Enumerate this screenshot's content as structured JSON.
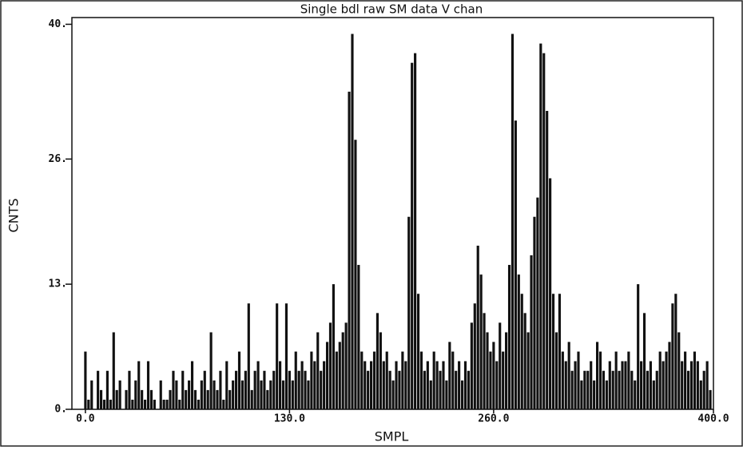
{
  "chart_data": {
    "type": "bar",
    "title": "Single bdl raw SM data V chan",
    "x_label": "SMPL",
    "y_label": "CNTS",
    "color": "#111111",
    "xlim": [
      -8.6,
      400
    ],
    "ylim": [
      0,
      40.7
    ],
    "xticks": [
      {
        "value": 0,
        "label": "0.0"
      },
      {
        "value": 130,
        "label": "130.0"
      },
      {
        "value": 260,
        "label": "260.0"
      },
      {
        "value": 400,
        "label": "400.0"
      }
    ],
    "yticks": [
      {
        "value": 0,
        "label": "0."
      },
      {
        "value": 13,
        "label": "13."
      },
      {
        "value": 26,
        "label": "26."
      },
      {
        "value": 40,
        "label": "40."
      }
    ],
    "grid": false,
    "x": [
      0,
      2,
      4,
      6,
      8,
      10,
      12,
      14,
      16,
      18,
      20,
      22,
      24,
      26,
      28,
      30,
      32,
      34,
      36,
      38,
      40,
      42,
      44,
      46,
      48,
      50,
      52,
      54,
      56,
      58,
      60,
      62,
      64,
      66,
      68,
      70,
      72,
      74,
      76,
      78,
      80,
      82,
      84,
      86,
      88,
      90,
      92,
      94,
      96,
      98,
      100,
      102,
      104,
      106,
      108,
      110,
      112,
      114,
      116,
      118,
      120,
      122,
      124,
      126,
      128,
      130,
      132,
      134,
      136,
      138,
      140,
      142,
      144,
      146,
      148,
      150,
      152,
      154,
      156,
      158,
      160,
      162,
      164,
      166,
      168,
      170,
      172,
      174,
      176,
      178,
      180,
      182,
      184,
      186,
      188,
      190,
      192,
      194,
      196,
      198,
      200,
      202,
      204,
      206,
      208,
      210,
      212,
      214,
      216,
      218,
      220,
      222,
      224,
      226,
      228,
      230,
      232,
      234,
      236,
      238,
      240,
      242,
      244,
      246,
      248,
      250,
      252,
      254,
      256,
      258,
      260,
      262,
      264,
      266,
      268,
      270,
      272,
      274,
      276,
      278,
      280,
      282,
      284,
      286,
      288,
      290,
      292,
      294,
      296,
      298,
      300,
      302,
      304,
      306,
      308,
      310,
      312,
      314,
      316,
      318,
      320,
      322,
      324,
      326,
      328,
      330,
      332,
      334,
      336,
      338,
      340,
      342,
      344,
      346,
      348,
      350,
      352,
      354,
      356,
      358,
      360,
      362,
      364,
      366,
      368,
      370,
      372,
      374,
      376,
      378,
      380,
      382,
      384,
      386,
      388,
      390,
      392,
      394,
      396,
      398
    ],
    "values": [
      6,
      1,
      3,
      0,
      4,
      2,
      1,
      4,
      1,
      8,
      2,
      3,
      0,
      2,
      4,
      1,
      3,
      5,
      2,
      1,
      5,
      2,
      1,
      0,
      3,
      1,
      1,
      2,
      4,
      3,
      1,
      4,
      2,
      3,
      5,
      2,
      1,
      3,
      4,
      2,
      8,
      3,
      2,
      4,
      1,
      5,
      2,
      3,
      4,
      6,
      3,
      4,
      11,
      2,
      4,
      5,
      3,
      4,
      2,
      3,
      4,
      11,
      5,
      3,
      11,
      4,
      3,
      6,
      4,
      5,
      4,
      3,
      6,
      5,
      8,
      4,
      5,
      7,
      9,
      13,
      6,
      7,
      8,
      9,
      33,
      39,
      28,
      15,
      6,
      5,
      4,
      5,
      6,
      10,
      8,
      5,
      6,
      4,
      3,
      5,
      4,
      6,
      5,
      20,
      36,
      37,
      12,
      6,
      4,
      5,
      3,
      6,
      5,
      4,
      5,
      3,
      7,
      6,
      4,
      5,
      3,
      5,
      4,
      9,
      11,
      17,
      14,
      10,
      8,
      6,
      7,
      5,
      9,
      6,
      8,
      15,
      39,
      30,
      14,
      12,
      10,
      8,
      16,
      20,
      22,
      38,
      37,
      31,
      24,
      12,
      8,
      12,
      6,
      5,
      7,
      4,
      5,
      6,
      3,
      4,
      4,
      5,
      3,
      7,
      6,
      4,
      3,
      5,
      4,
      6,
      4,
      5,
      5,
      6,
      4,
      3,
      13,
      5,
      10,
      4,
      5,
      3,
      4,
      6,
      5,
      6,
      7,
      11,
      12,
      8,
      5,
      6,
      4,
      5,
      6,
      5,
      3,
      4,
      5,
      2
    ]
  }
}
